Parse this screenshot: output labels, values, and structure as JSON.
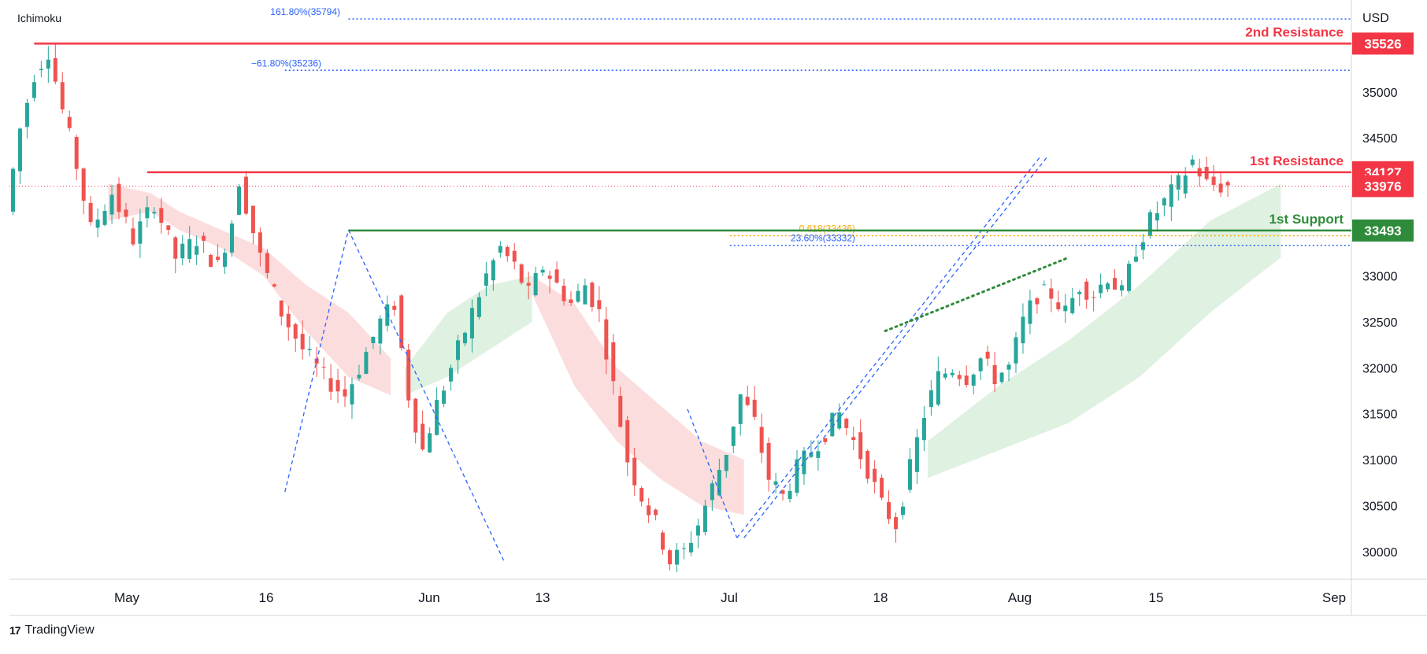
{
  "indicator_label": "Ichimoku",
  "currency": "USD",
  "branding": {
    "logo_text": "17",
    "name": "TradingView"
  },
  "colors": {
    "resistance": "#f23645",
    "support": "#2e8b3a",
    "fib_blue": "#2962ff",
    "fib_orange": "#f7a600",
    "cloud_red": "#fbd7d8",
    "cloud_green": "#d9eedb",
    "candle_up": "#26a69a",
    "candle_down": "#ef5350",
    "current_price": "#f23645"
  },
  "chart_data": {
    "type": "candlestick",
    "y_axis": {
      "min": 29700,
      "max": 36000,
      "ticks": [
        "30000",
        "30500",
        "31000",
        "31500",
        "32000",
        "32500",
        "33000",
        "33500",
        "34000",
        "34500",
        "35000",
        "35500"
      ]
    },
    "x_axis": {
      "labels": [
        "May",
        "16",
        "Jun",
        "13",
        "Jul",
        "18",
        "Aug",
        "15",
        "Sep"
      ]
    },
    "levels": [
      {
        "label": "2nd Resistance",
        "value": 35526,
        "badge": "35526",
        "kind": "resistance"
      },
      {
        "label": "1st Resistance",
        "value": 34127,
        "badge": "34127",
        "kind": "resistance"
      },
      {
        "label": "1st Support",
        "value": 33493,
        "badge": "33493",
        "kind": "support"
      }
    ],
    "current_price": {
      "value": 33976,
      "badge": "33976"
    },
    "fib_levels": [
      {
        "text": "161.80%(35794)",
        "value": 35794
      },
      {
        "text": "−61.80%(35236)",
        "value": 35236
      },
      {
        "text": "0.618(33436)",
        "value": 33436
      },
      {
        "text": "23.60%(33332)",
        "value": 33332
      }
    ],
    "price_path": [
      {
        "t": 0,
        "v": 33700
      },
      {
        "t": 2,
        "v": 34600
      },
      {
        "t": 4,
        "v": 35200
      },
      {
        "t": 6,
        "v": 35450
      },
      {
        "t": 8,
        "v": 34800
      },
      {
        "t": 10,
        "v": 34200
      },
      {
        "t": 12,
        "v": 33500
      },
      {
        "t": 15,
        "v": 33900
      },
      {
        "t": 18,
        "v": 33400
      },
      {
        "t": 21,
        "v": 33800
      },
      {
        "t": 24,
        "v": 33200
      },
      {
        "t": 27,
        "v": 33400
      },
      {
        "t": 30,
        "v": 33100
      },
      {
        "t": 32,
        "v": 33600
      },
      {
        "t": 33,
        "v": 34050
      },
      {
        "t": 36,
        "v": 33200
      },
      {
        "t": 39,
        "v": 32600
      },
      {
        "t": 42,
        "v": 32200
      },
      {
        "t": 45,
        "v": 31900
      },
      {
        "t": 48,
        "v": 31700
      },
      {
        "t": 50,
        "v": 32000
      },
      {
        "t": 53,
        "v": 32500
      },
      {
        "t": 55,
        "v": 32700
      },
      {
        "t": 57,
        "v": 31700
      },
      {
        "t": 59,
        "v": 31100
      },
      {
        "t": 61,
        "v": 31600
      },
      {
        "t": 63,
        "v": 32000
      },
      {
        "t": 65,
        "v": 32400
      },
      {
        "t": 68,
        "v": 33000
      },
      {
        "t": 70,
        "v": 33300
      },
      {
        "t": 72,
        "v": 33100
      },
      {
        "t": 74,
        "v": 32800
      },
      {
        "t": 76,
        "v": 33100
      },
      {
        "t": 78,
        "v": 32900
      },
      {
        "t": 80,
        "v": 32700
      },
      {
        "t": 82,
        "v": 32900
      },
      {
        "t": 84,
        "v": 32600
      },
      {
        "t": 86,
        "v": 31800
      },
      {
        "t": 88,
        "v": 31000
      },
      {
        "t": 90,
        "v": 30600
      },
      {
        "t": 92,
        "v": 30300
      },
      {
        "t": 94,
        "v": 29900
      },
      {
        "t": 96,
        "v": 30000
      },
      {
        "t": 98,
        "v": 30300
      },
      {
        "t": 100,
        "v": 30700
      },
      {
        "t": 102,
        "v": 31100
      },
      {
        "t": 104,
        "v": 31700
      },
      {
        "t": 106,
        "v": 31400
      },
      {
        "t": 108,
        "v": 30800
      },
      {
        "t": 110,
        "v": 30600
      },
      {
        "t": 112,
        "v": 30900
      },
      {
        "t": 114,
        "v": 31100
      },
      {
        "t": 116,
        "v": 31300
      },
      {
        "t": 118,
        "v": 31500
      },
      {
        "t": 120,
        "v": 31200
      },
      {
        "t": 122,
        "v": 30900
      },
      {
        "t": 124,
        "v": 30500
      },
      {
        "t": 126,
        "v": 30300
      },
      {
        "t": 128,
        "v": 30900
      },
      {
        "t": 130,
        "v": 31500
      },
      {
        "t": 132,
        "v": 31900
      },
      {
        "t": 134,
        "v": 32000
      },
      {
        "t": 136,
        "v": 31900
      },
      {
        "t": 138,
        "v": 32100
      },
      {
        "t": 140,
        "v": 31900
      },
      {
        "t": 142,
        "v": 32000
      },
      {
        "t": 144,
        "v": 32500
      },
      {
        "t": 146,
        "v": 32800
      },
      {
        "t": 148,
        "v": 32800
      },
      {
        "t": 150,
        "v": 32600
      },
      {
        "t": 152,
        "v": 32900
      },
      {
        "t": 154,
        "v": 32800
      },
      {
        "t": 156,
        "v": 33000
      },
      {
        "t": 158,
        "v": 32800
      },
      {
        "t": 160,
        "v": 33300
      },
      {
        "t": 162,
        "v": 33600
      },
      {
        "t": 164,
        "v": 33800
      },
      {
        "t": 166,
        "v": 34000
      },
      {
        "t": 168,
        "v": 34250
      },
      {
        "t": 170,
        "v": 34000
      },
      {
        "t": 172,
        "v": 33976
      }
    ],
    "cloud_red": [
      {
        "t": 14,
        "hi": 34000,
        "lo": 33600
      },
      {
        "t": 20,
        "hi": 33900,
        "lo": 33700
      },
      {
        "t": 24,
        "hi": 33700,
        "lo": 33500
      },
      {
        "t": 30,
        "hi": 33500,
        "lo": 33300
      },
      {
        "t": 36,
        "hi": 33300,
        "lo": 33000
      },
      {
        "t": 42,
        "hi": 32900,
        "lo": 32400
      },
      {
        "t": 48,
        "hi": 32600,
        "lo": 31900
      },
      {
        "t": 54,
        "hi": 32100,
        "lo": 31700
      }
    ],
    "cloud_green": [
      {
        "t": 56,
        "hi": 32000,
        "lo": 31700
      },
      {
        "t": 62,
        "hi": 32600,
        "lo": 31900
      },
      {
        "t": 68,
        "hi": 32900,
        "lo": 32200
      },
      {
        "t": 74,
        "hi": 33000,
        "lo": 32500
      }
    ],
    "cloud_red2": [
      {
        "t": 74,
        "hi": 33000,
        "lo": 32800
      },
      {
        "t": 80,
        "hi": 32700,
        "lo": 31800
      },
      {
        "t": 86,
        "hi": 32000,
        "lo": 31200
      },
      {
        "t": 92,
        "hi": 31600,
        "lo": 30800
      },
      {
        "t": 98,
        "hi": 31200,
        "lo": 30500
      },
      {
        "t": 104,
        "hi": 31000,
        "lo": 30400
      }
    ],
    "cloud_green2": [
      {
        "t": 130,
        "hi": 31200,
        "lo": 30800
      },
      {
        "t": 140,
        "hi": 31800,
        "lo": 31100
      },
      {
        "t": 150,
        "hi": 32300,
        "lo": 31400
      },
      {
        "t": 160,
        "hi": 32900,
        "lo": 31900
      },
      {
        "t": 170,
        "hi": 33600,
        "lo": 32600
      },
      {
        "t": 180,
        "hi": 34000,
        "lo": 33200
      }
    ]
  }
}
